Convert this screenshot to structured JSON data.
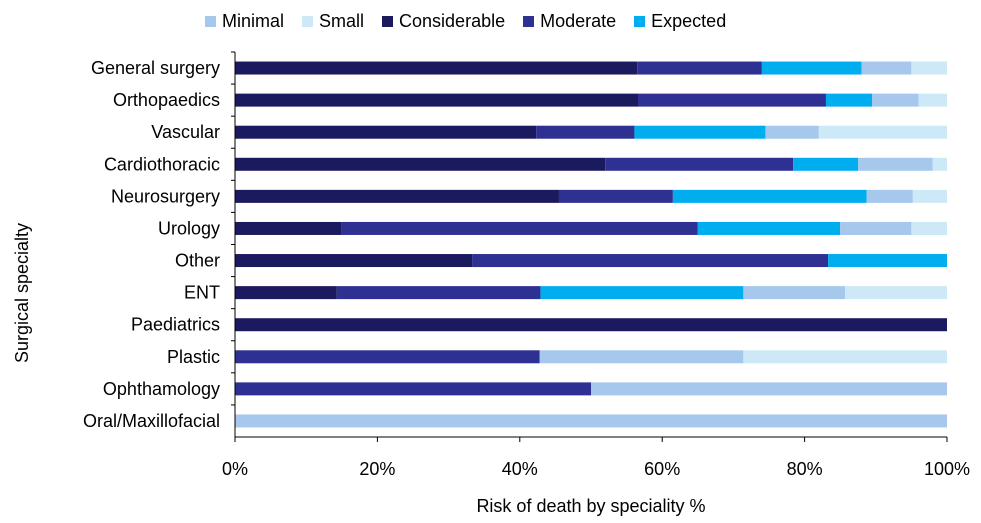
{
  "chart_data": {
    "type": "bar",
    "orientation": "horizontal",
    "stacked": "percent",
    "title": "",
    "xlabel": "Risk of death by speciality %",
    "ylabel": "Surgical specialty",
    "xlim": [
      0,
      100
    ],
    "xticks": [
      "0%",
      "20%",
      "40%",
      "60%",
      "80%",
      "100%"
    ],
    "categories": [
      "General surgery",
      "Orthopaedics",
      "Vascular",
      "Cardiothoracic",
      "Neurosurgery",
      "Urology",
      "Other",
      "ENT",
      "Paediatrics",
      "Plastic",
      "Ophthamology",
      "Oral/Maxillofacial"
    ],
    "legend_position": "top",
    "legend": [
      "Minimal",
      "Small",
      "Considerable",
      "Moderate",
      "Expected"
    ],
    "stack_order": [
      "Considerable",
      "Moderate",
      "Expected",
      "Minimal",
      "Small"
    ],
    "series": [
      {
        "name": "Minimal",
        "color": "#a6c8ec",
        "values": [
          7,
          6.5,
          7.5,
          10.5,
          6.5,
          10,
          0,
          14.3,
          0,
          28.6,
          50,
          100
        ]
      },
      {
        "name": "Small",
        "color": "#cde9f8",
        "values": [
          5,
          4,
          18,
          2,
          4.8,
          5,
          0,
          14.3,
          0,
          28.6,
          0,
          0
        ]
      },
      {
        "name": "Considerable",
        "color": "#1b1a5e",
        "values": [
          56.5,
          56.6,
          42.3,
          52,
          45.5,
          15,
          33.3,
          14.3,
          100,
          0,
          0,
          0
        ]
      },
      {
        "name": "Moderate",
        "color": "#2e3192",
        "values": [
          17.5,
          26.4,
          13.8,
          26.4,
          16,
          50,
          50,
          28.6,
          0,
          42.8,
          50,
          0
        ]
      },
      {
        "name": "Expected",
        "color": "#00aeef",
        "values": [
          14,
          6.5,
          18.4,
          9.1,
          27.2,
          20,
          16.7,
          28.5,
          0,
          0,
          0,
          0
        ]
      }
    ]
  }
}
